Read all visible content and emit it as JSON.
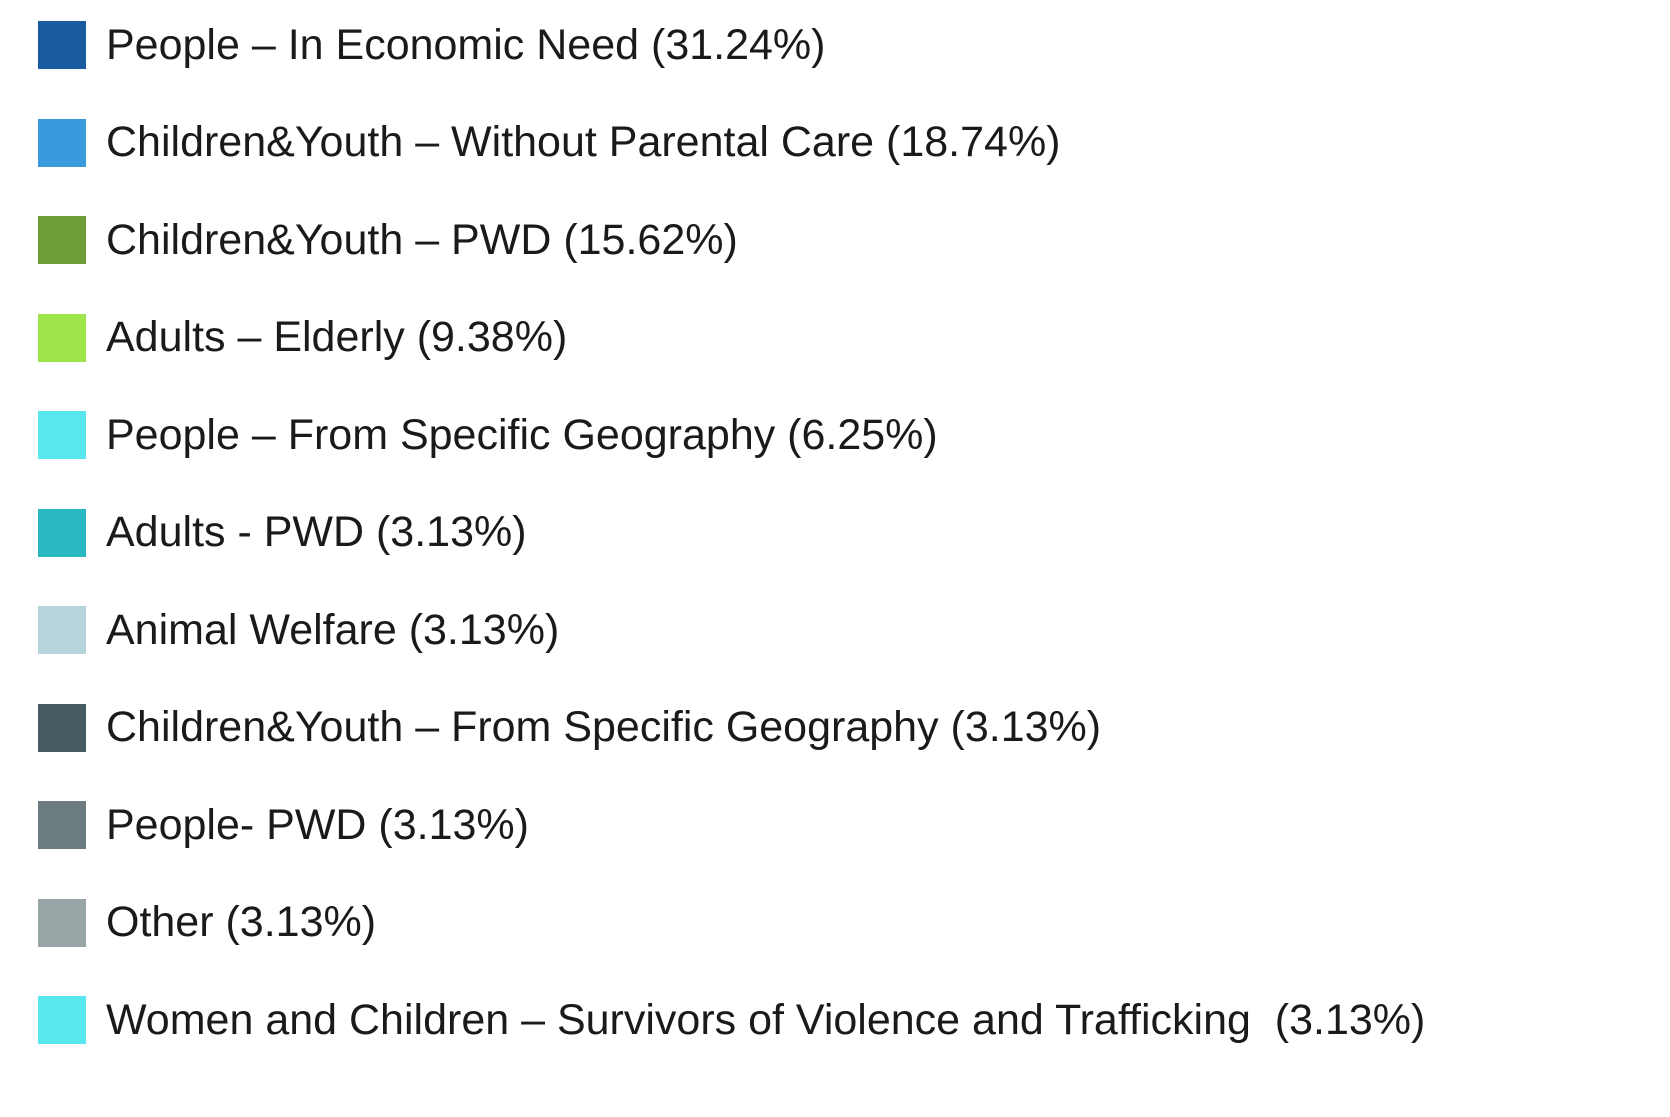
{
  "legend": {
    "items": [
      {
        "label": "People – In Economic Need (31.24%)",
        "color": "#1a5aa0"
      },
      {
        "label": "Children&Youth – Without Parental Care (18.74%)",
        "color": "#3a9bdc"
      },
      {
        "label": "Children&Youth – PWD (15.62%)",
        "color": "#6e9e3a"
      },
      {
        "label": "Adults – Elderly (9.38%)",
        "color": "#9de54a"
      },
      {
        "label": "People – From Specific Geography (6.25%)",
        "color": "#5ae6ee"
      },
      {
        "label": "Adults - PWD (3.13%)",
        "color": "#29b8c2"
      },
      {
        "label": "Animal Welfare (3.13%)",
        "color": "#b6d4db"
      },
      {
        "label": "Children&Youth – From Specific Geography (3.13%)",
        "color": "#465a62"
      },
      {
        "label": "People- PWD (3.13%)",
        "color": "#6b7b80"
      },
      {
        "label": "Other (3.13%)",
        "color": "#99a6a8"
      },
      {
        "label": "Women and Children – Survivors of Violence and Trafficking  (3.13%)",
        "color": "#5ae8ee"
      }
    ]
  }
}
